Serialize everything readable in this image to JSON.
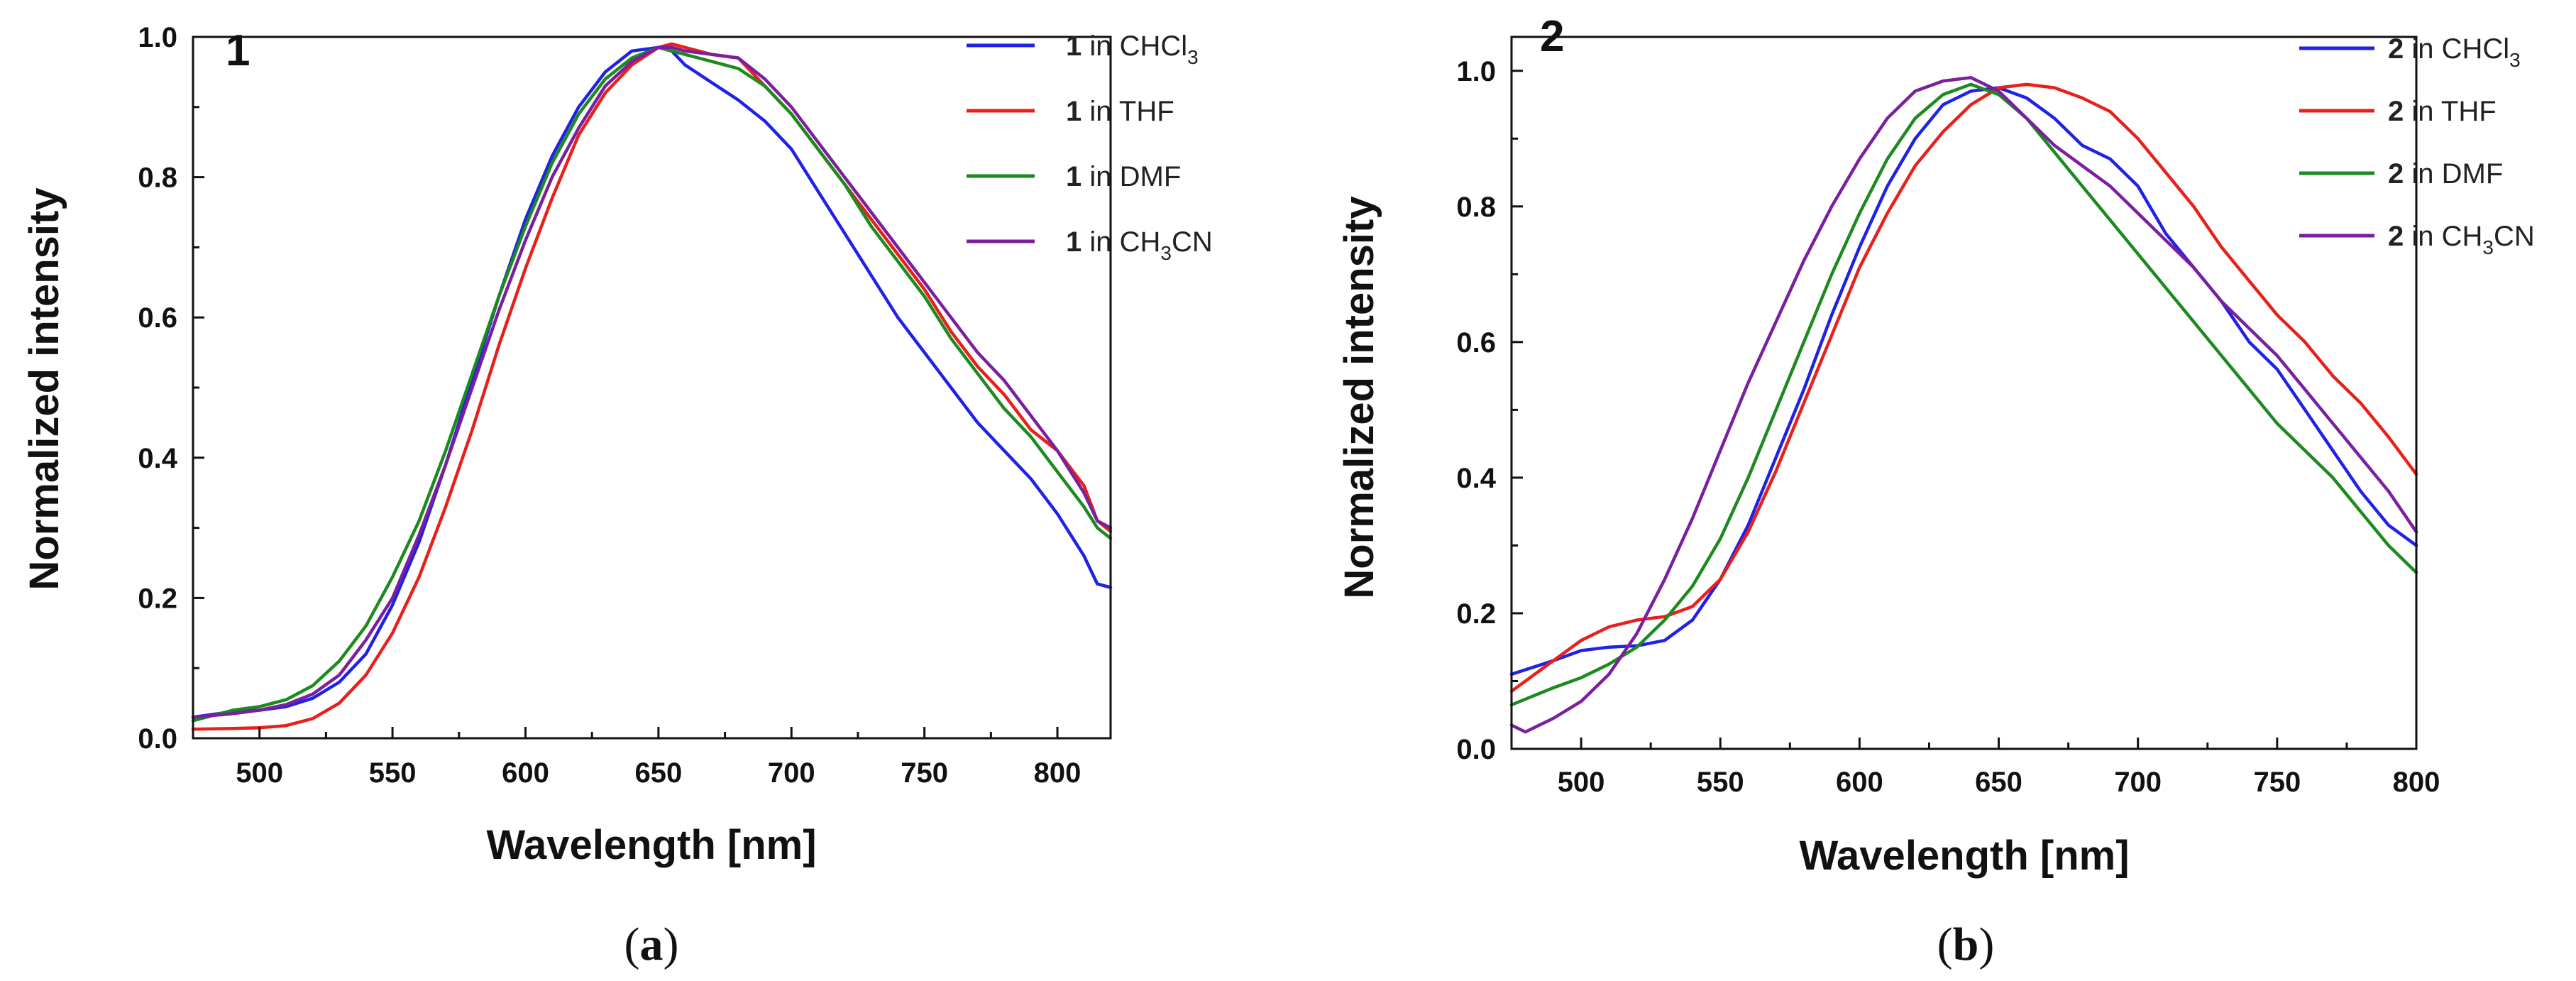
{
  "chart_data": [
    {
      "type": "line",
      "panel_label": "1",
      "caption": {
        "letter": "a"
      },
      "xlabel": "Wavelength [nm]",
      "ylabel": "Normalized intensity",
      "xlim": [
        475,
        820
      ],
      "ylim": [
        0,
        1.0
      ],
      "xticks": [
        500,
        550,
        600,
        650,
        700,
        750,
        800
      ],
      "yticks": [
        0.0,
        0.2,
        0.4,
        0.6,
        0.8,
        1.0
      ],
      "ytick_labels": [
        "0.0",
        "0.2",
        "0.4",
        "0.6",
        "0.8",
        "1.0"
      ],
      "legend_position": "top-right",
      "series": [
        {
          "compound": "1",
          "label_prefix": " in CHCl",
          "label_sub": "3",
          "label_suffix": "",
          "color": "#1f22e6",
          "x": [
            475,
            490,
            500,
            510,
            520,
            530,
            540,
            550,
            560,
            570,
            580,
            590,
            600,
            610,
            620,
            630,
            640,
            650,
            655,
            660,
            670,
            680,
            690,
            700,
            710,
            720,
            730,
            740,
            750,
            760,
            770,
            780,
            790,
            800,
            810,
            815,
            820
          ],
          "y": [
            0.03,
            0.038,
            0.04,
            0.045,
            0.057,
            0.08,
            0.12,
            0.19,
            0.28,
            0.39,
            0.51,
            0.63,
            0.74,
            0.83,
            0.9,
            0.95,
            0.98,
            0.985,
            0.98,
            0.96,
            0.935,
            0.91,
            0.88,
            0.84,
            0.78,
            0.72,
            0.66,
            0.6,
            0.55,
            0.5,
            0.45,
            0.41,
            0.37,
            0.32,
            0.26,
            0.22,
            0.215
          ]
        },
        {
          "compound": "1",
          "label_prefix": " in THF",
          "label_sub": "",
          "label_suffix": "",
          "color": "#e8201c",
          "x": [
            475,
            490,
            500,
            510,
            520,
            530,
            540,
            550,
            560,
            570,
            580,
            590,
            600,
            610,
            620,
            630,
            640,
            650,
            655,
            660,
            670,
            680,
            690,
            700,
            710,
            720,
            730,
            740,
            750,
            760,
            770,
            780,
            790,
            800,
            810,
            815,
            820
          ],
          "y": [
            0.013,
            0.014,
            0.015,
            0.018,
            0.028,
            0.05,
            0.09,
            0.15,
            0.23,
            0.33,
            0.44,
            0.56,
            0.67,
            0.77,
            0.86,
            0.92,
            0.96,
            0.985,
            0.99,
            0.985,
            0.975,
            0.97,
            0.93,
            0.89,
            0.84,
            0.79,
            0.74,
            0.69,
            0.64,
            0.58,
            0.53,
            0.49,
            0.44,
            0.41,
            0.36,
            0.31,
            0.295
          ]
        },
        {
          "compound": "1",
          "label_prefix": " in DMF",
          "label_sub": "",
          "label_suffix": "",
          "color": "#1c8a1e",
          "x": [
            475,
            490,
            500,
            510,
            520,
            530,
            540,
            550,
            560,
            570,
            580,
            590,
            600,
            610,
            620,
            630,
            640,
            650,
            655,
            660,
            670,
            680,
            690,
            700,
            710,
            720,
            730,
            740,
            750,
            760,
            770,
            780,
            790,
            800,
            810,
            815,
            820
          ],
          "y": [
            0.025,
            0.04,
            0.045,
            0.055,
            0.075,
            0.11,
            0.16,
            0.23,
            0.31,
            0.41,
            0.52,
            0.63,
            0.73,
            0.82,
            0.89,
            0.94,
            0.97,
            0.985,
            0.98,
            0.975,
            0.965,
            0.955,
            0.93,
            0.89,
            0.84,
            0.79,
            0.73,
            0.68,
            0.63,
            0.57,
            0.52,
            0.47,
            0.43,
            0.38,
            0.33,
            0.3,
            0.285
          ]
        },
        {
          "compound": "1",
          "label_prefix": " in CH",
          "label_sub": "3",
          "label_suffix": "CN",
          "color": "#7a1f9e",
          "x": [
            475,
            490,
            500,
            510,
            520,
            530,
            540,
            550,
            560,
            570,
            580,
            590,
            600,
            610,
            620,
            630,
            640,
            650,
            655,
            660,
            670,
            680,
            690,
            700,
            710,
            720,
            730,
            740,
            750,
            760,
            770,
            780,
            790,
            800,
            810,
            815,
            820
          ],
          "y": [
            0.03,
            0.035,
            0.04,
            0.048,
            0.063,
            0.09,
            0.14,
            0.2,
            0.29,
            0.39,
            0.5,
            0.61,
            0.71,
            0.8,
            0.87,
            0.93,
            0.965,
            0.985,
            0.985,
            0.98,
            0.975,
            0.97,
            0.94,
            0.9,
            0.85,
            0.8,
            0.75,
            0.7,
            0.65,
            0.6,
            0.55,
            0.51,
            0.46,
            0.41,
            0.35,
            0.31,
            0.3
          ]
        }
      ]
    },
    {
      "type": "line",
      "panel_label": "2",
      "caption": {
        "letter": "b"
      },
      "xlabel": "Wavelength [nm]",
      "ylabel": "Normalized intensity",
      "xlim": [
        475,
        800
      ],
      "ylim": [
        0,
        1.05
      ],
      "xticks": [
        500,
        550,
        600,
        650,
        700,
        750,
        800
      ],
      "yticks": [
        0.0,
        0.2,
        0.4,
        0.6,
        0.8,
        1.0
      ],
      "ytick_labels": [
        "0.0",
        "0.2",
        "0.4",
        "0.6",
        "0.8",
        "1.0"
      ],
      "legend_position": "top-right",
      "series": [
        {
          "compound": "2",
          "label_prefix": " in CHCl",
          "label_sub": "3",
          "label_suffix": "",
          "color": "#1f22e6",
          "x": [
            475,
            490,
            500,
            510,
            520,
            530,
            540,
            550,
            560,
            570,
            580,
            590,
            600,
            610,
            620,
            630,
            640,
            650,
            660,
            670,
            680,
            690,
            700,
            710,
            720,
            730,
            740,
            750,
            760,
            770,
            780,
            790,
            800
          ],
          "y": [
            0.11,
            0.13,
            0.145,
            0.15,
            0.152,
            0.16,
            0.19,
            0.25,
            0.33,
            0.43,
            0.53,
            0.64,
            0.74,
            0.83,
            0.9,
            0.95,
            0.97,
            0.975,
            0.96,
            0.93,
            0.89,
            0.87,
            0.83,
            0.76,
            0.71,
            0.66,
            0.6,
            0.56,
            0.5,
            0.44,
            0.38,
            0.33,
            0.3
          ]
        },
        {
          "compound": "2",
          "label_prefix": " in THF",
          "label_sub": "",
          "label_suffix": "",
          "color": "#e8201c",
          "x": [
            475,
            490,
            500,
            510,
            520,
            530,
            540,
            550,
            560,
            570,
            580,
            590,
            600,
            610,
            620,
            630,
            640,
            650,
            660,
            670,
            680,
            690,
            700,
            710,
            720,
            730,
            740,
            750,
            760,
            770,
            780,
            790,
            800
          ],
          "y": [
            0.085,
            0.13,
            0.16,
            0.18,
            0.19,
            0.195,
            0.21,
            0.25,
            0.32,
            0.41,
            0.51,
            0.61,
            0.71,
            0.79,
            0.86,
            0.91,
            0.95,
            0.975,
            0.98,
            0.975,
            0.96,
            0.94,
            0.9,
            0.85,
            0.8,
            0.74,
            0.69,
            0.64,
            0.6,
            0.55,
            0.51,
            0.46,
            0.405
          ]
        },
        {
          "compound": "2",
          "label_prefix": " in DMF",
          "label_sub": "",
          "label_suffix": "",
          "color": "#1c8a1e",
          "x": [
            475,
            490,
            500,
            510,
            520,
            530,
            540,
            550,
            560,
            570,
            580,
            590,
            600,
            610,
            620,
            630,
            640,
            650,
            660,
            670,
            680,
            690,
            700,
            710,
            720,
            730,
            740,
            750,
            760,
            770,
            780,
            790,
            800
          ],
          "y": [
            0.065,
            0.09,
            0.105,
            0.125,
            0.15,
            0.19,
            0.24,
            0.31,
            0.4,
            0.5,
            0.6,
            0.7,
            0.79,
            0.87,
            0.93,
            0.965,
            0.98,
            0.965,
            0.93,
            0.88,
            0.83,
            0.78,
            0.73,
            0.68,
            0.63,
            0.58,
            0.53,
            0.48,
            0.44,
            0.4,
            0.35,
            0.3,
            0.26
          ]
        },
        {
          "compound": "2",
          "label_prefix": " in CH",
          "label_sub": "3",
          "label_suffix": "CN",
          "color": "#7a1f9e",
          "x": [
            475,
            480,
            490,
            500,
            510,
            520,
            530,
            540,
            550,
            560,
            570,
            580,
            590,
            600,
            610,
            620,
            630,
            640,
            650,
            660,
            670,
            680,
            690,
            700,
            710,
            720,
            730,
            740,
            750,
            760,
            770,
            780,
            790,
            800
          ],
          "y": [
            0.035,
            0.025,
            0.045,
            0.07,
            0.11,
            0.17,
            0.25,
            0.34,
            0.44,
            0.54,
            0.63,
            0.72,
            0.8,
            0.87,
            0.93,
            0.97,
            0.985,
            0.99,
            0.97,
            0.93,
            0.89,
            0.86,
            0.83,
            0.79,
            0.75,
            0.71,
            0.66,
            0.62,
            0.58,
            0.53,
            0.48,
            0.43,
            0.38,
            0.32
          ]
        }
      ]
    }
  ]
}
